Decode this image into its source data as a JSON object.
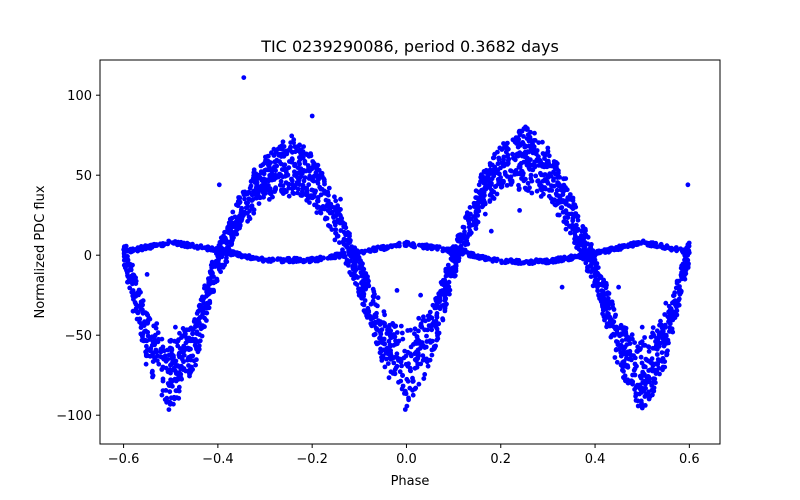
{
  "chart_data": {
    "type": "scatter",
    "title": "TIC 0239290086, period 0.3682 days",
    "xlabel": "Phase",
    "ylabel": "Normalized PDC flux",
    "xlim": [
      -0.65,
      0.665
    ],
    "ylim": [
      -118,
      122
    ],
    "xticks": [
      -0.6,
      -0.4,
      -0.2,
      0.0,
      0.2,
      0.4,
      0.6
    ],
    "xtick_labels": [
      "−0.6",
      "−0.4",
      "−0.2",
      "0.0",
      "0.2",
      "0.4",
      "0.6"
    ],
    "yticks": [
      -100,
      -50,
      0,
      50,
      100
    ],
    "ytick_labels": [
      "−100",
      "−50",
      "0",
      "50",
      "100"
    ],
    "grid": false,
    "legend": "none",
    "marker_color": "#0000ff",
    "phase_range": [
      -0.6,
      0.6
    ],
    "series": [
      {
        "description": "main sinusoidal band (upper edge)",
        "x": [
          -0.6,
          -0.55,
          -0.5,
          -0.45,
          -0.4,
          -0.35,
          -0.3,
          -0.25,
          -0.2,
          -0.15,
          -0.1,
          -0.05,
          0.0,
          0.05,
          0.1,
          0.15,
          0.2,
          0.25,
          0.3,
          0.35,
          0.4,
          0.45,
          0.5,
          0.55,
          0.6
        ],
        "y": [
          10,
          -35,
          -55,
          -40,
          5,
          40,
          62,
          75,
          62,
          35,
          0,
          -35,
          -45,
          -35,
          5,
          45,
          68,
          80,
          68,
          40,
          0,
          -40,
          -55,
          -38,
          10
        ]
      },
      {
        "description": "main sinusoidal band (lower edge)",
        "x": [
          -0.6,
          -0.55,
          -0.5,
          -0.45,
          -0.4,
          -0.35,
          -0.3,
          -0.25,
          -0.2,
          -0.15,
          -0.1,
          -0.05,
          0.0,
          0.05,
          0.1,
          0.15,
          0.2,
          0.25,
          0.3,
          0.35,
          0.4,
          0.45,
          0.5,
          0.55,
          0.6
        ],
        "y": [
          -5,
          -70,
          -100,
          -70,
          -15,
          15,
          35,
          38,
          32,
          10,
          -25,
          -70,
          -100,
          -70,
          -15,
          20,
          38,
          42,
          35,
          12,
          -20,
          -70,
          -100,
          -70,
          -5
        ]
      },
      {
        "description": "low-amplitude thin band",
        "x": [
          -0.6,
          -0.5,
          -0.4,
          -0.3,
          -0.2,
          -0.1,
          0.0,
          0.1,
          0.2,
          0.3,
          0.4,
          0.5,
          0.6
        ],
        "y": [
          2,
          8,
          3,
          -3,
          -3,
          2,
          7,
          3,
          -4,
          -4,
          1,
          8,
          2
        ]
      },
      {
        "description": "outliers",
        "x": [
          -0.345,
          0.597,
          -0.2,
          -0.397,
          -0.43,
          -0.49,
          -0.55,
          -0.58,
          0.33,
          0.24,
          -0.14,
          0.35,
          0.5,
          0.55,
          0.03,
          -0.02,
          0.45,
          0.18
        ],
        "y": [
          111,
          44,
          87,
          44,
          -30,
          -45,
          -12,
          -35,
          -20,
          28,
          35,
          30,
          -45,
          -30,
          -25,
          -22,
          -20,
          15
        ]
      }
    ]
  }
}
